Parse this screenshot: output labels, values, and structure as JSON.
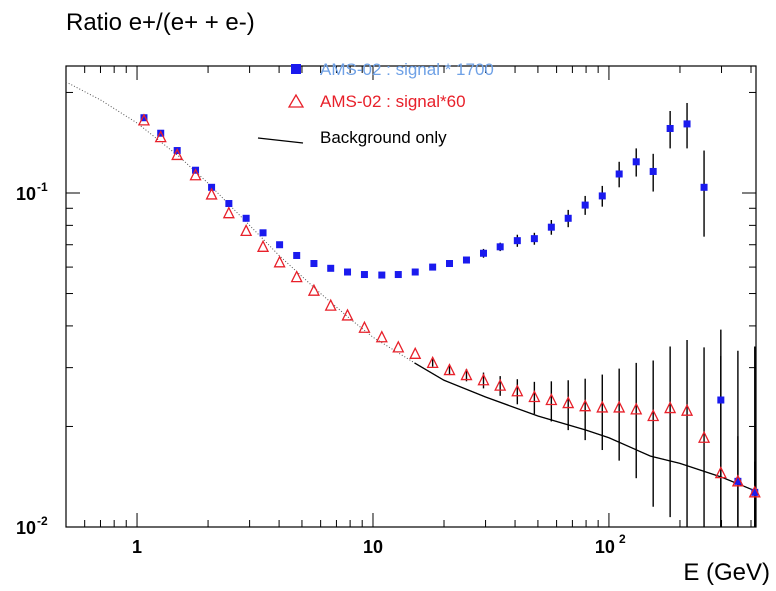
{
  "chart_data": {
    "type": "scatter",
    "title": "Ratio e+/(e+ + e-)",
    "xlabel": "E (GeV)",
    "ylabel": "",
    "xscale": "log",
    "yscale": "log",
    "xlim": [
      0.5,
      420
    ],
    "ylim": [
      0.01,
      0.24
    ],
    "x_tick_labels": [
      {
        "value": 1,
        "base": "1",
        "exp": ""
      },
      {
        "value": 10,
        "base": "10",
        "exp": ""
      },
      {
        "value": 100,
        "base": "10",
        "exp": "2"
      }
    ],
    "y_tick_labels": [
      {
        "value": 0.1,
        "base": "10",
        "exp": "-1"
      },
      {
        "value": 0.01,
        "base": "10",
        "exp": "-2"
      }
    ],
    "legend": {
      "position": "top-center",
      "entries": [
        {
          "label": "AMS-02 : signal * 1700",
          "marker": "filled-square",
          "color": "#6fa1e6"
        },
        {
          "label": "AMS-02 :  signal*60",
          "marker": "open-triangle",
          "color": "#e8202a"
        },
        {
          "label": "Background only",
          "marker": "line",
          "color": "#000000"
        }
      ]
    },
    "series": [
      {
        "name": "AMS-02 : signal * 1700",
        "color": "#1a1aee",
        "marker": "filled-square",
        "x": [
          1.07,
          1.26,
          1.48,
          1.77,
          2.07,
          2.45,
          2.9,
          3.42,
          4.02,
          4.75,
          5.62,
          6.62,
          7.8,
          9.2,
          10.9,
          12.8,
          15.1,
          17.9,
          21.1,
          24.9,
          29.4,
          34.6,
          40.9,
          48.3,
          57.0,
          67.2,
          79.3,
          93.7,
          110.5,
          130.5,
          154,
          181.7,
          214.3,
          253,
          298,
          352,
          415
        ],
        "y": [
          0.168,
          0.151,
          0.134,
          0.117,
          0.104,
          0.093,
          0.084,
          0.076,
          0.07,
          0.065,
          0.0615,
          0.0595,
          0.058,
          0.057,
          0.0568,
          0.057,
          0.058,
          0.06,
          0.0615,
          0.063,
          0.066,
          0.069,
          0.072,
          0.073,
          0.079,
          0.084,
          0.092,
          0.098,
          0.114,
          0.124,
          0.116,
          0.156,
          0.161,
          0.104,
          0.024,
          0.0137,
          0.0127
        ],
        "err": [
          0,
          0,
          0,
          0,
          0,
          0,
          0,
          0,
          0,
          0,
          0,
          0,
          0,
          0,
          0,
          0,
          0,
          0,
          0,
          0,
          0.002,
          0.002,
          0.003,
          0.003,
          0.004,
          0.005,
          0.006,
          0.007,
          0.01,
          0.012,
          0.015,
          0.02,
          0.025,
          0.03,
          0.015,
          0.005,
          0.003
        ]
      },
      {
        "name": "AMS-02 :  signal*60",
        "color": "#e8202a",
        "marker": "open-triangle",
        "x": [
          1.07,
          1.26,
          1.48,
          1.77,
          2.07,
          2.45,
          2.9,
          3.42,
          4.02,
          4.75,
          5.62,
          6.62,
          7.8,
          9.2,
          10.9,
          12.8,
          15.1,
          17.9,
          21.1,
          24.9,
          29.4,
          34.6,
          40.9,
          48.3,
          57.0,
          67.2,
          79.3,
          93.7,
          110.5,
          130.5,
          154,
          181.7,
          214.3,
          253,
          298,
          352,
          415
        ],
        "y": [
          0.165,
          0.147,
          0.13,
          0.113,
          0.099,
          0.087,
          0.077,
          0.069,
          0.062,
          0.056,
          0.051,
          0.046,
          0.043,
          0.0395,
          0.037,
          0.0345,
          0.033,
          0.031,
          0.0295,
          0.0285,
          0.0275,
          0.0265,
          0.0255,
          0.0245,
          0.024,
          0.0235,
          0.023,
          0.0228,
          0.0228,
          0.0225,
          0.0215,
          0.0227,
          0.0223,
          0.0185,
          0.0145,
          0.0137,
          0.0127
        ],
        "err": [
          0,
          0,
          0,
          0,
          0,
          0,
          0,
          0,
          0,
          0,
          0,
          0,
          0,
          0,
          0,
          0,
          0,
          0.0008,
          0.001,
          0.0012,
          0.0015,
          0.0018,
          0.0022,
          0.0027,
          0.0033,
          0.004,
          0.0048,
          0.0058,
          0.007,
          0.0085,
          0.01,
          0.012,
          0.014,
          0.016,
          0.018,
          0.02,
          0.022
        ]
      },
      {
        "name": "Background only",
        "color": "#000000",
        "marker": "line",
        "x": [
          0.5,
          0.7,
          1.0,
          1.5,
          2.0,
          3.0,
          4.0,
          6.0,
          8.0,
          10,
          15,
          20,
          30,
          50,
          80,
          100,
          150,
          200,
          300,
          420
        ],
        "y": [
          0.215,
          0.19,
          0.162,
          0.129,
          0.107,
          0.08,
          0.065,
          0.05,
          0.042,
          0.037,
          0.031,
          0.0275,
          0.0245,
          0.0215,
          0.0195,
          0.0185,
          0.0163,
          0.0155,
          0.0141,
          0.0128
        ]
      }
    ]
  }
}
